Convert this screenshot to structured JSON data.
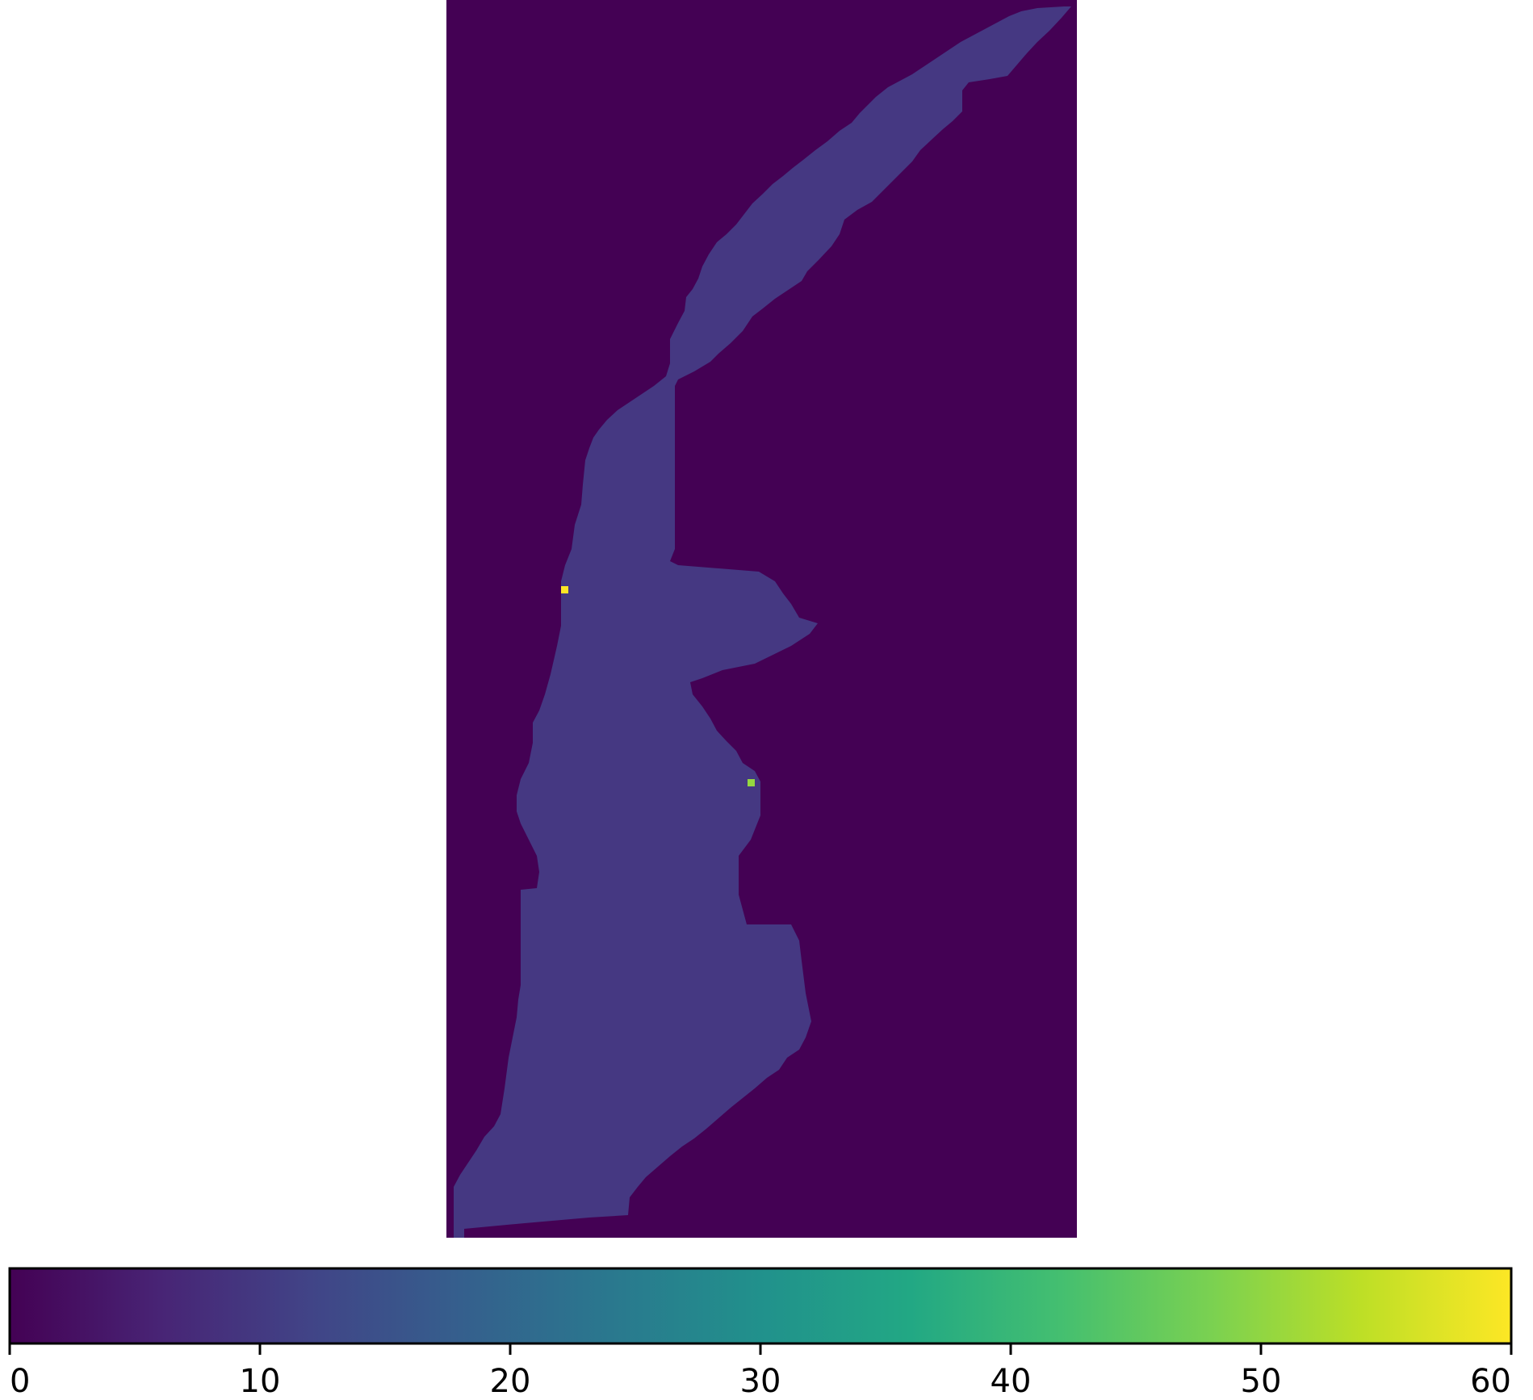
{
  "chart_data": {
    "type": "heatmap",
    "title": "",
    "xlabel": "",
    "ylabel": "",
    "colormap": "viridis",
    "colorbar": {
      "orientation": "horizontal",
      "placement": "bottom",
      "range": [
        0,
        60
      ],
      "ticks": [
        0,
        10,
        20,
        30,
        40,
        50,
        60
      ],
      "tick_labels": [
        "0",
        "10",
        "20",
        "30",
        "40",
        "50",
        "60"
      ]
    },
    "background": {
      "value": 0,
      "color": "#440154"
    },
    "regions": [
      {
        "name": "",
        "value": 8,
        "color": "#453882"
      }
    ],
    "highlight_cells": [
      {
        "value": 60,
        "color": "#fde725"
      },
      {
        "value": 50,
        "color": "#95d840"
      }
    ]
  }
}
